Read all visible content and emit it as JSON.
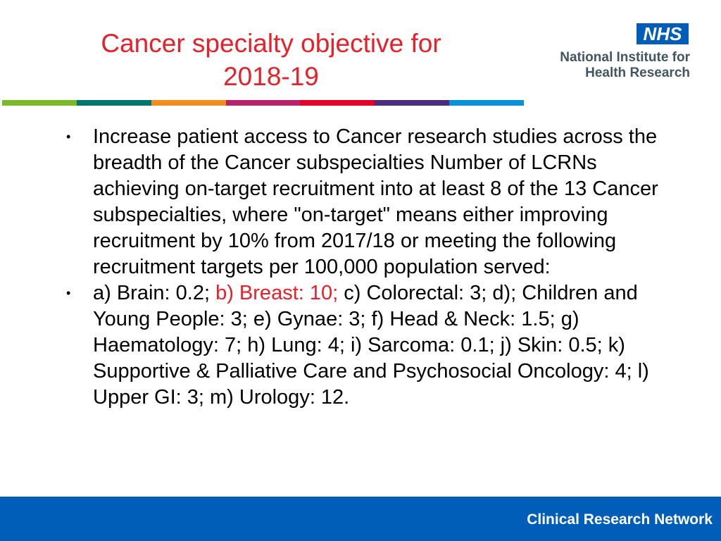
{
  "title": {
    "line1": "Cancer specialty objective for",
    "line2": "2018-19"
  },
  "logo": {
    "badge": "NHS",
    "line1": "National Institute for",
    "line2": "Health Research"
  },
  "color_bar": [
    "#7ab929",
    "#00776e",
    "#f18d1e",
    "#b5246a",
    "#e4002b",
    "#4b2d7f",
    "#0b8fd6"
  ],
  "content": {
    "bullet_glyph": "•",
    "item1": "Increase patient access to Cancer research studies across the breadth of the Cancer subspecialties Number of LCRNs achieving on-target recruitment into at least 8 of the 13 Cancer subspecialties, where \"on-target\" means either improving recruitment by 10% from 2017/18 or meeting the following recruitment targets per 100,000 population served:",
    "item2_part1": "a) Brain: 0.2; ",
    "item2_highlight": "b) Breast: 10;",
    "item2_part2": " c) Colorectal: 3; d); Children and Young People: 3; e) Gynae: 3; f) Head & Neck: 1.5; g) Haematology: 7; h) Lung: 4; i) Sarcoma: 0.1; j) Skin: 0.5; k) Supportive & Palliative Care and Psychosocial Oncology: 4; l) Upper GI: 3; m) Urology: 12."
  },
  "footer": {
    "text": "Clinical Research Network"
  }
}
